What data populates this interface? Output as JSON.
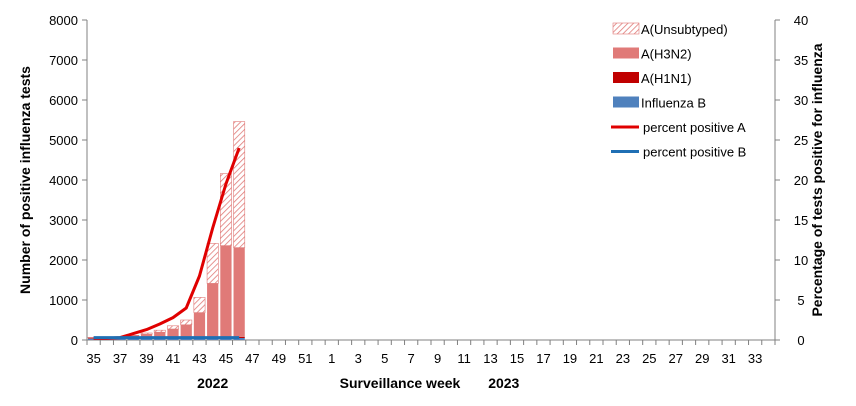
{
  "chart_data": {
    "type": "bar",
    "left_axis": {
      "title": "Number of positive influenza tests",
      "ylim": [
        0,
        8000
      ],
      "ticks": [
        0,
        1000,
        2000,
        3000,
        4000,
        5000,
        6000,
        7000,
        8000
      ]
    },
    "right_axis": {
      "title": "Percentage of tests positive for influenza",
      "ylim": [
        0,
        40
      ],
      "ticks": [
        0,
        5,
        10,
        15,
        20,
        25,
        30,
        35,
        40
      ]
    },
    "xlabel": "Surveillance  week",
    "year_labels": [
      {
        "text": "2022",
        "week": 44
      },
      {
        "text": "2023",
        "week": 14
      }
    ],
    "weeks": [
      35,
      36,
      37,
      38,
      39,
      40,
      41,
      42,
      43,
      44,
      45,
      46,
      47,
      48,
      49,
      50,
      51,
      52,
      1,
      2,
      3,
      4,
      5,
      6,
      7,
      8,
      9,
      10,
      11,
      12,
      13,
      14,
      15,
      16,
      17,
      18,
      19,
      20,
      21,
      22,
      23,
      24,
      25,
      26,
      27,
      28,
      29,
      30,
      31,
      32,
      33,
      34
    ],
    "week_tick_labels": [
      "35",
      "37",
      "39",
      "41",
      "43",
      "45",
      "47",
      "49",
      "51",
      "1",
      "3",
      "5",
      "7",
      "9",
      "11",
      "13",
      "15",
      "17",
      "19",
      "21",
      "23",
      "25",
      "27",
      "29",
      "31",
      "33"
    ],
    "grid": false,
    "legend_position": "top-right",
    "series": [
      {
        "name": "A(Unsubtyped)",
        "kind": "bar",
        "pattern": "hatch",
        "color": "#e07a78",
        "values": [
          5,
          5,
          10,
          15,
          30,
          50,
          80,
          120,
          380,
          1000,
          1800,
          3150
        ]
      },
      {
        "name": "A(H3N2)",
        "kind": "bar",
        "color": "#e07a78",
        "values": [
          20,
          25,
          30,
          60,
          100,
          150,
          230,
          330,
          630,
          1350,
          2280,
          2230
        ]
      },
      {
        "name": "A(H1N1)",
        "kind": "bar",
        "color": "#c00000",
        "values": [
          2,
          2,
          2,
          3,
          5,
          5,
          5,
          10,
          15,
          20,
          30,
          30
        ]
      },
      {
        "name": "Influenza B",
        "kind": "bar",
        "color": "#4f81bd",
        "values": [
          40,
          40,
          40,
          40,
          40,
          40,
          40,
          40,
          40,
          45,
          50,
          50
        ]
      },
      {
        "name": "percent positive A",
        "kind": "line",
        "axis": "right",
        "color": "#e00000",
        "values": [
          0.2,
          0.2,
          0.3,
          0.8,
          1.3,
          2.0,
          2.8,
          4.0,
          8.0,
          14.0,
          19.5,
          24.0
        ]
      },
      {
        "name": "percent positive B",
        "kind": "line",
        "axis": "right",
        "color": "#1f6fb4",
        "values": [
          0.3,
          0.3,
          0.3,
          0.3,
          0.3,
          0.3,
          0.3,
          0.3,
          0.3,
          0.3,
          0.3,
          0.3
        ]
      }
    ]
  }
}
